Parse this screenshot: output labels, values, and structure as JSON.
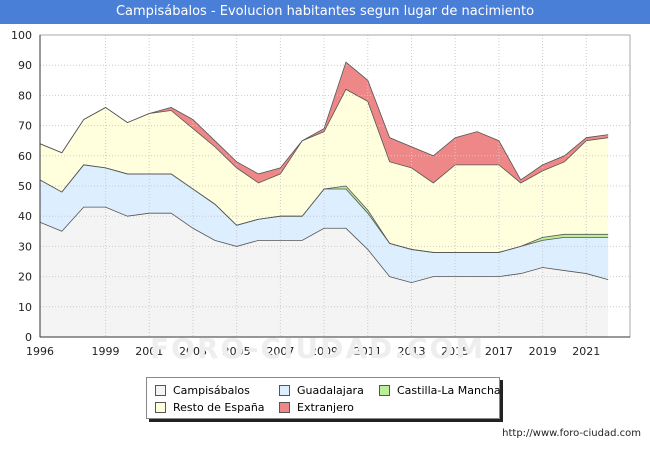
{
  "title": "Campisábalos - Evolucion habitantes segun lugar de nacimiento",
  "footer": "http://www.foro-ciudad.com",
  "watermark": "FORO-CIUDAD.COM",
  "chart_data": {
    "type": "area",
    "stacked": true,
    "title": "Campisábalos - Evolucion habitantes segun lugar de nacimiento",
    "xlabel": "",
    "ylabel": "",
    "ylim": [
      0,
      100
    ],
    "xlim": [
      1996,
      2023
    ],
    "grid": true,
    "legend_position": "bottom",
    "x": [
      1996,
      1997,
      1998,
      1999,
      2000,
      2001,
      2002,
      2003,
      2004,
      2005,
      2006,
      2007,
      2008,
      2009,
      2010,
      2011,
      2012,
      2013,
      2014,
      2015,
      2016,
      2017,
      2018,
      2019,
      2020,
      2021,
      2022
    ],
    "xticks": [
      1996,
      1999,
      2001,
      2003,
      2005,
      2007,
      2009,
      2011,
      2013,
      2015,
      2017,
      2019,
      2021
    ],
    "yticks": [
      0,
      10,
      20,
      30,
      40,
      50,
      60,
      70,
      80,
      90,
      100
    ],
    "series": [
      {
        "name": "Campisábalos",
        "color": "#f4f4f4",
        "values": [
          38,
          35,
          43,
          43,
          40,
          41,
          41,
          36,
          32,
          30,
          32,
          32,
          32,
          36,
          36,
          29,
          20,
          18,
          20,
          20,
          20,
          20,
          21,
          23,
          22,
          21,
          19
        ]
      },
      {
        "name": "Guadalajara",
        "color": "#ddeeff",
        "values": [
          14,
          13,
          14,
          13,
          14,
          13,
          13,
          13,
          12,
          7,
          7,
          8,
          8,
          13,
          13,
          12,
          11,
          11,
          8,
          8,
          8,
          8,
          9,
          9,
          11,
          12,
          14
        ]
      },
      {
        "name": "Castilla-La Mancha",
        "color": "#bbee99",
        "values": [
          0,
          0,
          0,
          0,
          0,
          0,
          0,
          0,
          0,
          0,
          0,
          0,
          0,
          0,
          1,
          1,
          0,
          0,
          0,
          0,
          0,
          0,
          0,
          1,
          1,
          1,
          1
        ]
      },
      {
        "name": "Resto de España",
        "color": "#ffffdd",
        "values": [
          12,
          13,
          15,
          20,
          17,
          20,
          21,
          20,
          19,
          19,
          12,
          14,
          25,
          19,
          32,
          36,
          27,
          27,
          23,
          29,
          29,
          29,
          21,
          22,
          24,
          31,
          32
        ]
      },
      {
        "name": "Extranjero",
        "color": "#ee8888",
        "values": [
          0,
          0,
          0,
          0,
          0,
          0,
          1,
          3,
          2,
          2,
          3,
          2,
          0,
          1,
          9,
          7,
          8,
          7,
          9,
          9,
          11,
          8,
          1,
          2,
          2,
          1,
          1
        ]
      }
    ]
  },
  "legend": {
    "items": [
      {
        "label": "Campisábalos",
        "color": "#f4f4f4"
      },
      {
        "label": "Guadalajara",
        "color": "#ddeeff"
      },
      {
        "label": "Castilla-La Mancha",
        "color": "#bbee99"
      },
      {
        "label": "Resto de España",
        "color": "#ffffdd"
      },
      {
        "label": "Extranjero",
        "color": "#ee8888"
      }
    ]
  }
}
